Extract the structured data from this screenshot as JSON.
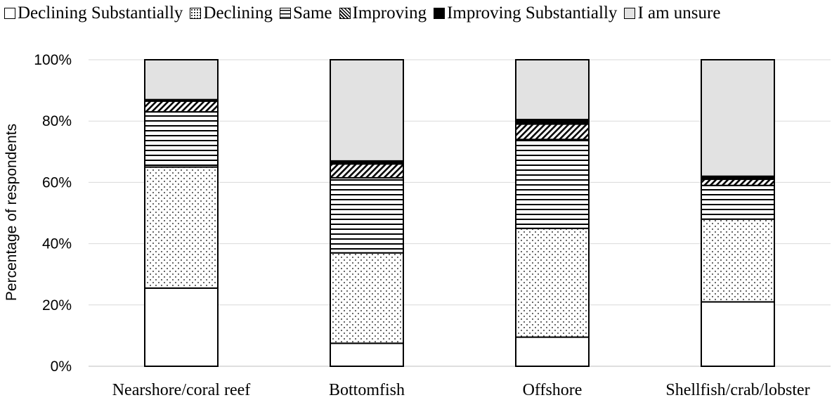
{
  "chart_data": {
    "type": "bar",
    "stacked": true,
    "title": "",
    "xlabel": "",
    "ylabel": "Percentage of respondents",
    "ylim": [
      0,
      100
    ],
    "y_ticks": [
      "0%",
      "20%",
      "40%",
      "60%",
      "80%",
      "100%"
    ],
    "y_tick_values": [
      0,
      20,
      40,
      60,
      80,
      100
    ],
    "grid": true,
    "legend_position": "top",
    "categories": [
      "Nearshore/coral reef",
      "Bottomfish",
      "Offshore",
      "Shellfish/crab/lobster"
    ],
    "series": [
      {
        "name": "Declining Substantially",
        "pattern": "white",
        "values": [
          25.5,
          7.5,
          9.5,
          21
        ]
      },
      {
        "name": "Declining",
        "pattern": "dots",
        "values": [
          39.5,
          29.5,
          35.5,
          27
        ]
      },
      {
        "name": "Same",
        "pattern": "horizontal-lines",
        "values": [
          18,
          24.5,
          29,
          11
        ]
      },
      {
        "name": "Improving",
        "pattern": "diagonal-hatch",
        "values": [
          3.5,
          4.5,
          5,
          2
        ]
      },
      {
        "name": "Improving Substantially",
        "pattern": "solid-black",
        "values": [
          0.5,
          1,
          1.5,
          1
        ]
      },
      {
        "name": "I am unsure",
        "pattern": "light-gray",
        "values": [
          13,
          33,
          19.5,
          38
        ]
      }
    ]
  },
  "colors": {
    "unsure_fill": "#e2e2e2",
    "grid": "#d9d9d9",
    "outline": "#000000"
  }
}
